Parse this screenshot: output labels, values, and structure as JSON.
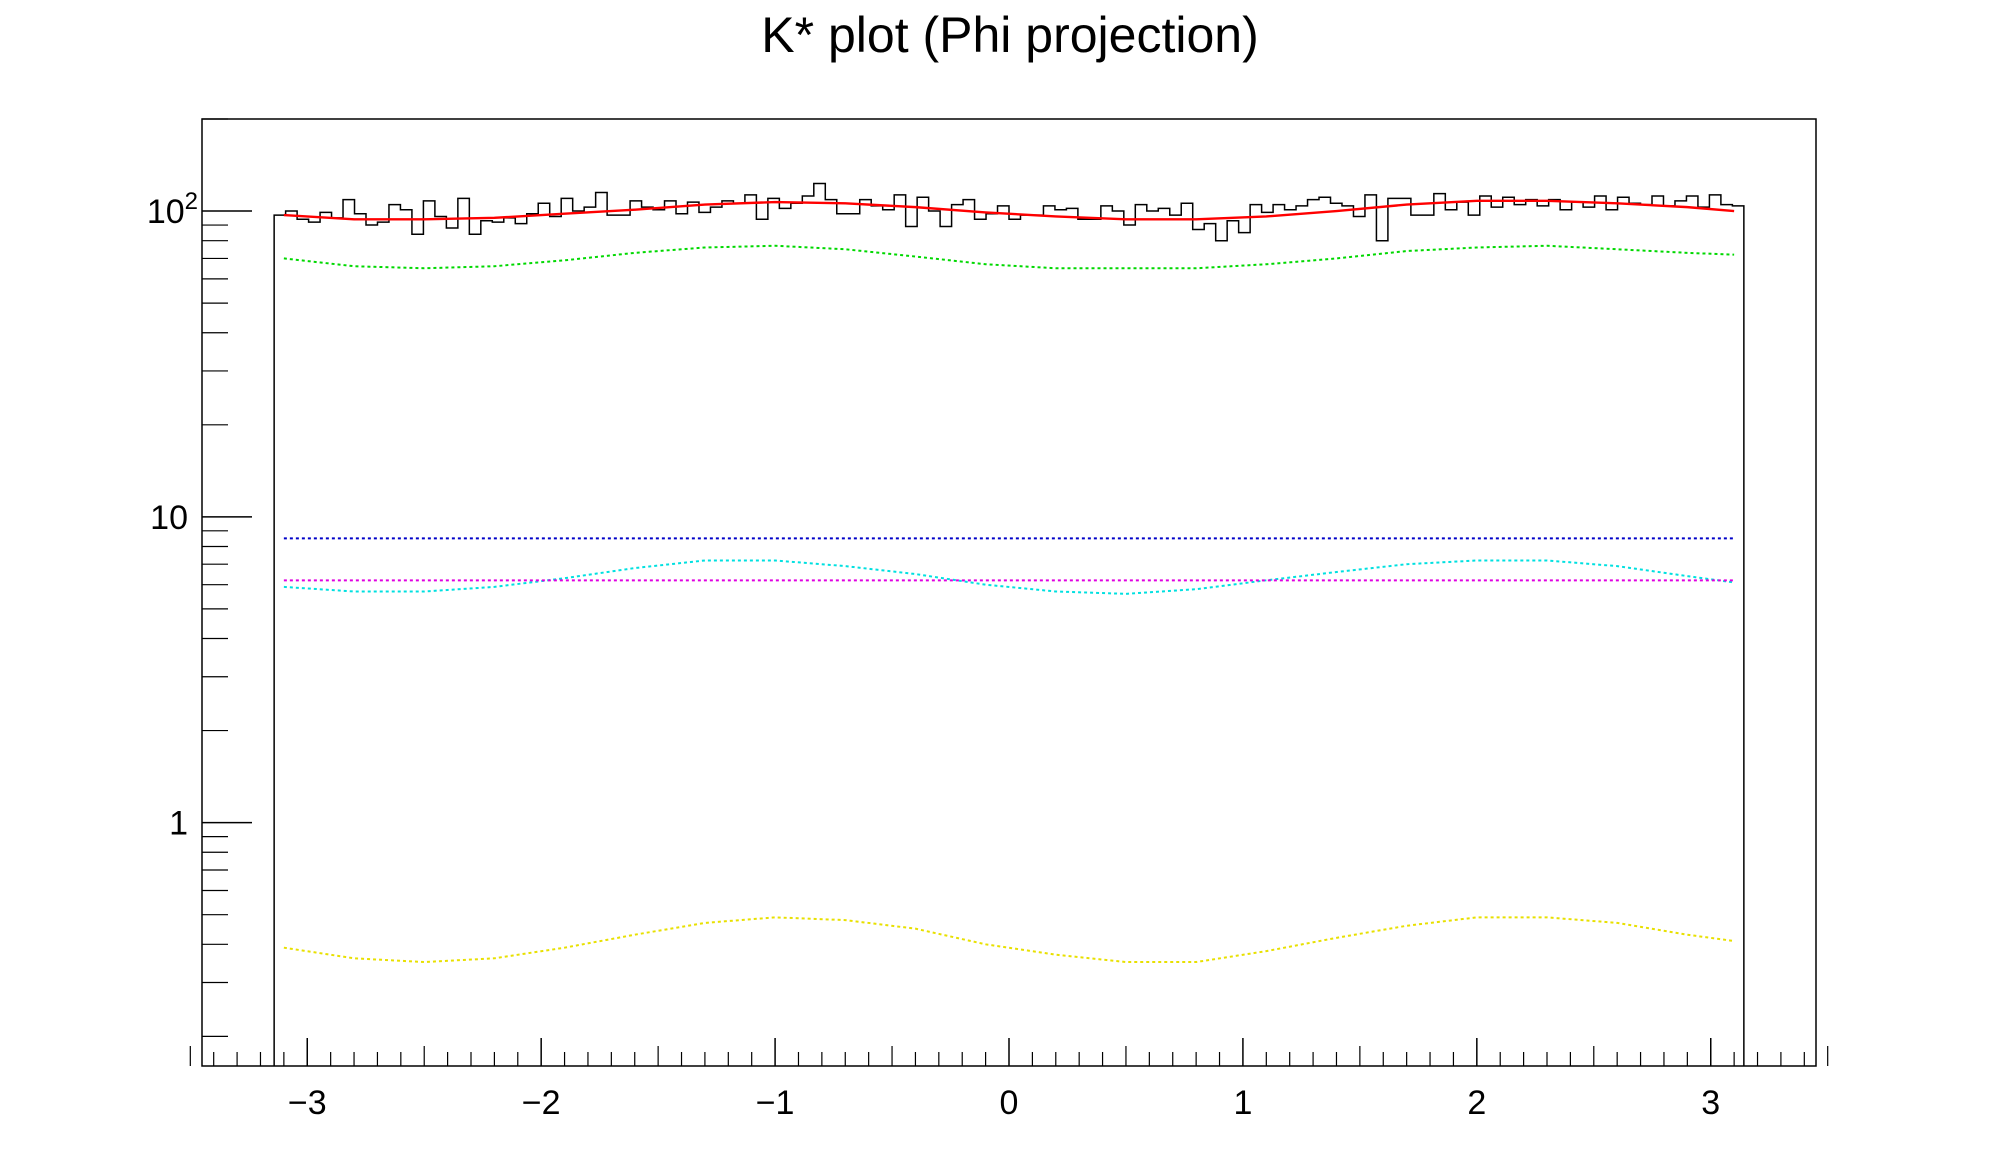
{
  "chart_data": {
    "type": "line",
    "title": "K* plot (Phi projection)",
    "xlabel": "",
    "ylabel": "",
    "xlim": [
      -3.45,
      3.45
    ],
    "ylim": [
      0.16,
      200
    ],
    "y_scale": "log",
    "grid": false,
    "x_ticks": [
      -3,
      -2,
      -1,
      0,
      1,
      2,
      3
    ],
    "x_tick_labels": [
      "−3",
      "−2",
      "−1",
      "0",
      "1",
      "2",
      "3"
    ],
    "y_major_ticks": [
      {
        "value": 1,
        "label": "1"
      },
      {
        "value": 10,
        "label": "10"
      },
      {
        "value": 100,
        "base": "10",
        "exponent": "2"
      }
    ],
    "histogram": {
      "name": "",
      "color": "#000000",
      "x_range": [
        -3.14159,
        3.14159
      ],
      "values": [
        97,
        100,
        94,
        92,
        99,
        95,
        109,
        98,
        90,
        92,
        105,
        101,
        84,
        108,
        96,
        88,
        110,
        84,
        93,
        92,
        95,
        91,
        98,
        106,
        96,
        110,
        100,
        103,
        115,
        97,
        97,
        108,
        103,
        101,
        108,
        98,
        107,
        99,
        103,
        108,
        106,
        113,
        94,
        110,
        102,
        106,
        112,
        123,
        109,
        98,
        98,
        109,
        104,
        101,
        113,
        89,
        111,
        100,
        89,
        105,
        109,
        94,
        98,
        104,
        94,
        97,
        97,
        104,
        101,
        102,
        94,
        94,
        104,
        100,
        90,
        105,
        100,
        102,
        97,
        106,
        87,
        91,
        80,
        93,
        85,
        105,
        99,
        105,
        101,
        104,
        109,
        111,
        106,
        104,
        96,
        113,
        80,
        110,
        110,
        97,
        97,
        114,
        101,
        107,
        97,
        112,
        103,
        111,
        105,
        109,
        104,
        109,
        101,
        107,
        103,
        112,
        101,
        111,
        106,
        105,
        112,
        104,
        108,
        112,
        103,
        113,
        105,
        104
      ]
    },
    "series": [
      {
        "name": "",
        "color": "#ff0000",
        "style": "solid",
        "x": [
          -3.1,
          -2.8,
          -2.5,
          -2.2,
          -1.9,
          -1.6,
          -1.3,
          -1.0,
          -0.7,
          -0.4,
          -0.1,
          0.2,
          0.5,
          0.8,
          1.1,
          1.4,
          1.7,
          2.0,
          2.3,
          2.6,
          2.9,
          3.1
        ],
        "y": [
          97,
          94,
          94,
          95,
          98,
          101,
          105,
          107,
          106,
          103,
          99,
          96,
          94,
          94,
          96,
          100,
          105,
          108,
          108,
          106,
          103,
          100
        ]
      },
      {
        "name": "",
        "color": "#00d800",
        "style": "dotted",
        "x": [
          -3.1,
          -2.8,
          -2.5,
          -2.2,
          -1.9,
          -1.6,
          -1.3,
          -1.0,
          -0.7,
          -0.4,
          -0.1,
          0.2,
          0.5,
          0.8,
          1.1,
          1.4,
          1.7,
          2.0,
          2.3,
          2.6,
          2.9,
          3.1
        ],
        "y": [
          70,
          66,
          65,
          66,
          69,
          73,
          76,
          77,
          75,
          71,
          67,
          65,
          65,
          65,
          67,
          70,
          74,
          76,
          77,
          75,
          73,
          72
        ]
      },
      {
        "name": "",
        "color": "#0000c8",
        "style": "dotted",
        "x": [
          -3.1,
          3.1
        ],
        "y": [
          8.5,
          8.5
        ]
      },
      {
        "name": "",
        "color": "#00e0e0",
        "style": "dotted",
        "x": [
          -3.1,
          -2.8,
          -2.5,
          -2.2,
          -1.9,
          -1.6,
          -1.3,
          -1.0,
          -0.7,
          -0.4,
          -0.1,
          0.2,
          0.5,
          0.8,
          1.1,
          1.4,
          1.7,
          2.0,
          2.3,
          2.6,
          2.9,
          3.1
        ],
        "y": [
          5.9,
          5.7,
          5.7,
          5.9,
          6.3,
          6.8,
          7.2,
          7.2,
          6.9,
          6.5,
          6.0,
          5.7,
          5.6,
          5.8,
          6.2,
          6.6,
          7.0,
          7.2,
          7.2,
          6.9,
          6.4,
          6.1
        ]
      },
      {
        "name": "",
        "color": "#e000e0",
        "style": "dotted",
        "x": [
          -3.1,
          3.1
        ],
        "y": [
          6.2,
          6.2
        ]
      },
      {
        "name": "",
        "color": "#e8e000",
        "style": "dotted",
        "x": [
          -3.1,
          -2.8,
          -2.5,
          -2.2,
          -1.9,
          -1.6,
          -1.3,
          -1.0,
          -0.7,
          -0.4,
          -0.1,
          0.2,
          0.5,
          0.8,
          1.1,
          1.4,
          1.7,
          2.0,
          2.3,
          2.6,
          2.9,
          3.1
        ],
        "y": [
          0.39,
          0.36,
          0.35,
          0.36,
          0.39,
          0.43,
          0.47,
          0.49,
          0.48,
          0.45,
          0.4,
          0.37,
          0.35,
          0.35,
          0.38,
          0.42,
          0.46,
          0.49,
          0.49,
          0.47,
          0.43,
          0.41
        ]
      }
    ]
  }
}
